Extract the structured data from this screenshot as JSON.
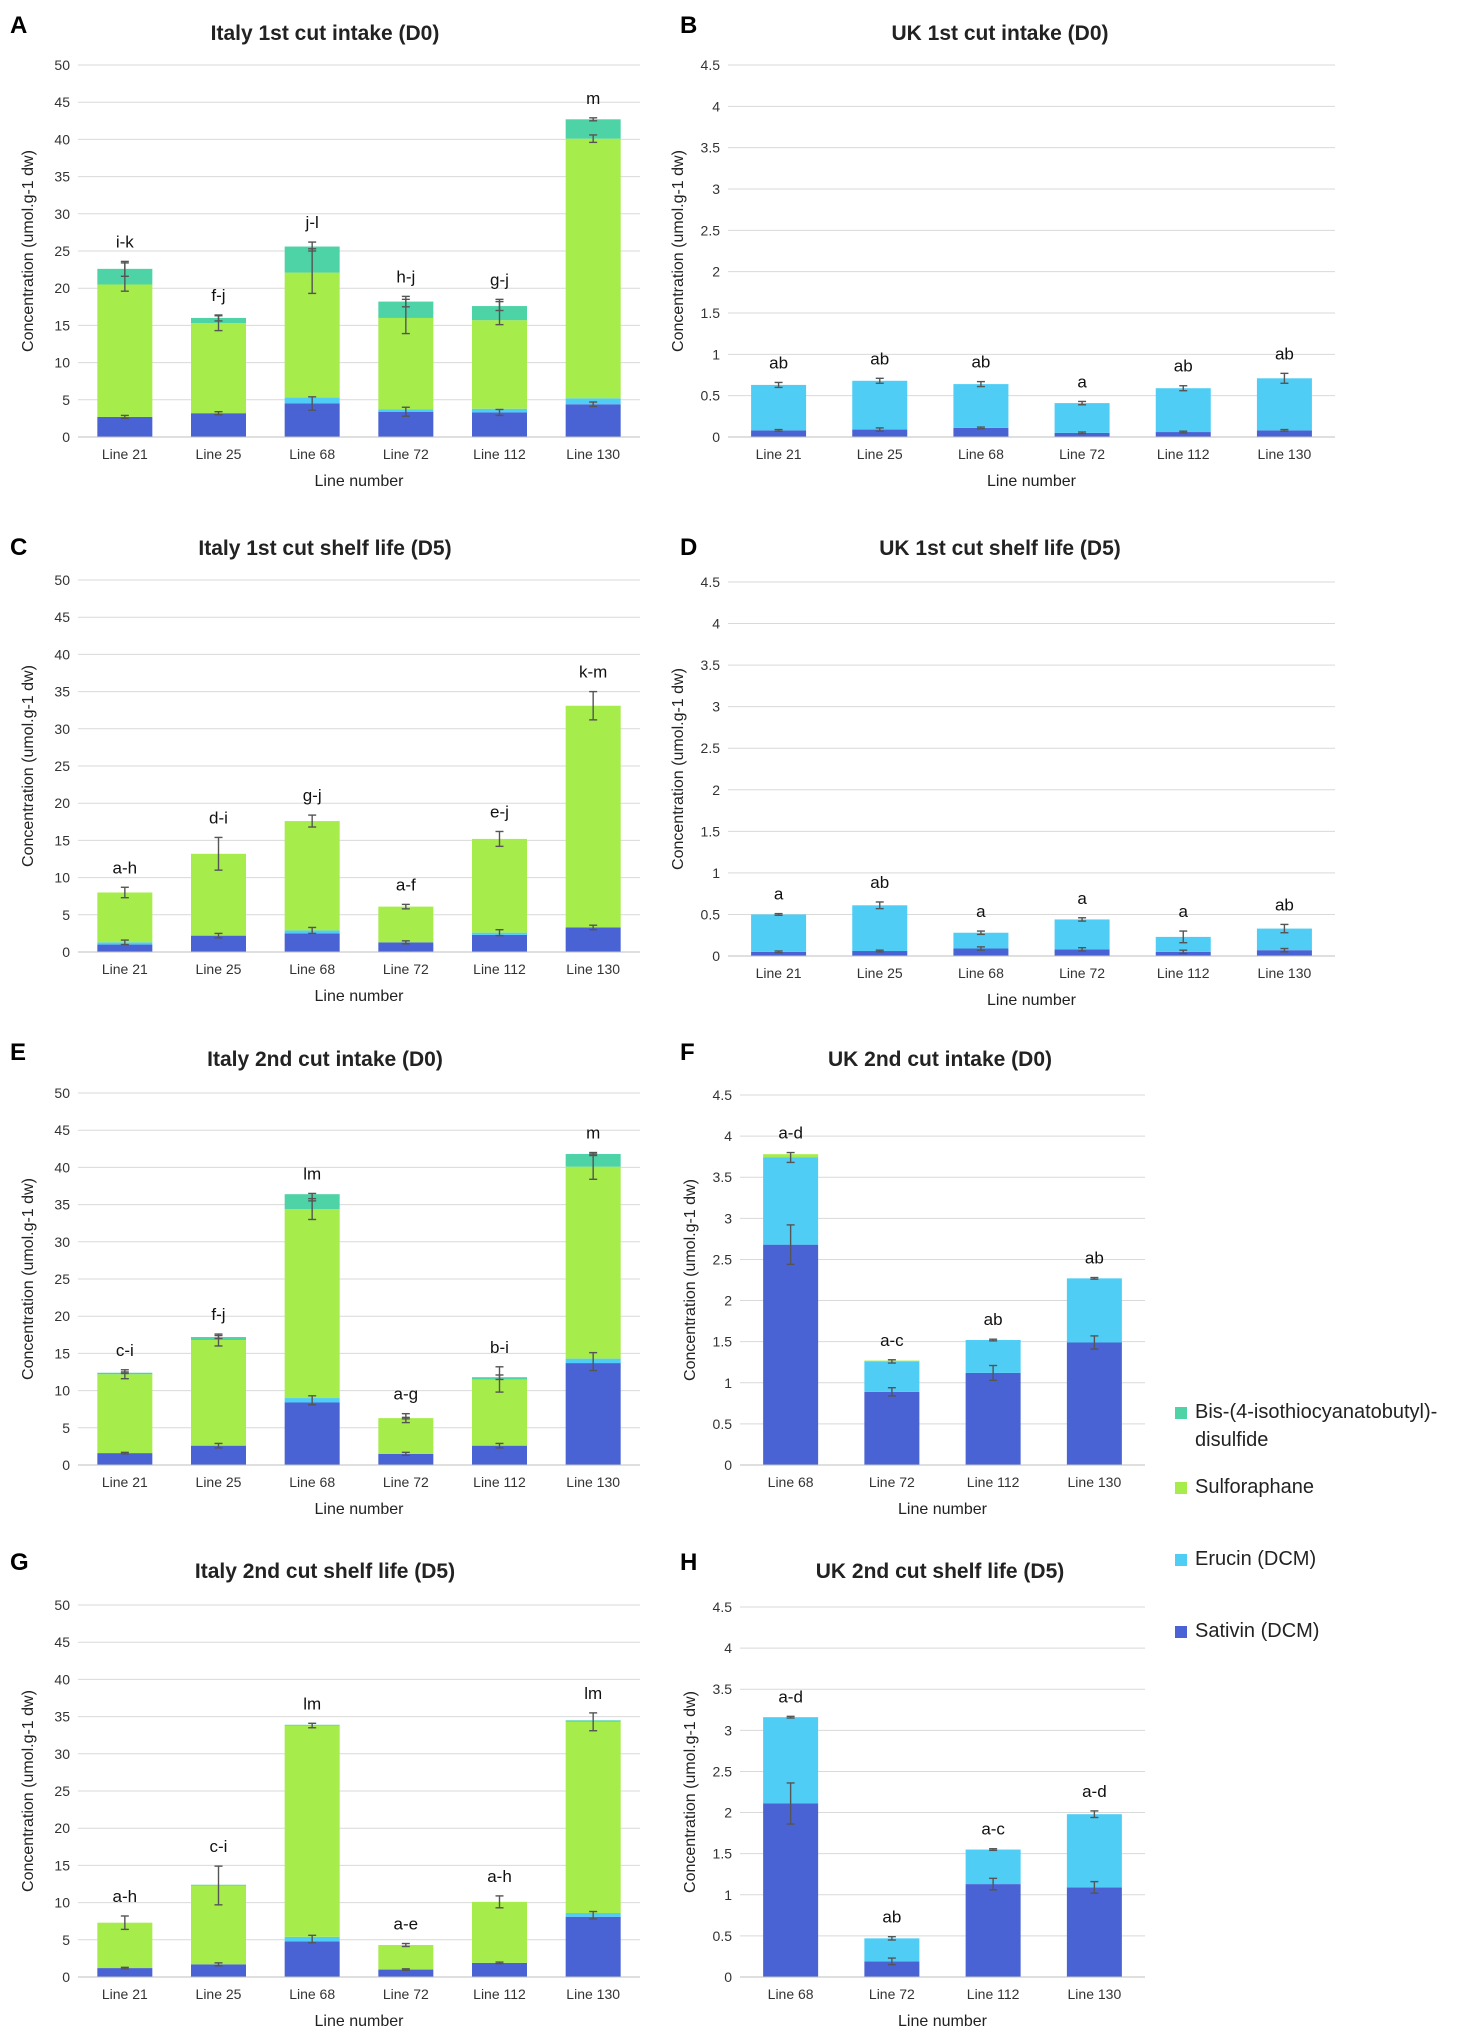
{
  "series_colors": {
    "Sativin (DCM)": "#4a63d4",
    "Erucin (DCM)": "#4fcdf5",
    "Sulforaphane": "#a6ec4a",
    "Bis-(4-isothiocyanatobutyl)-disulfide": "#4ed3a7"
  },
  "legend": {
    "items": [
      {
        "name": "Bis-(4-isothiocyanatobutyl)-disulfide",
        "lines": [
          "Bis-(4-isothiocyanatobutyl)-",
          "disulfide"
        ],
        "color": "#4ed3a7"
      },
      {
        "name": "Sulforaphane",
        "lines": [
          "Sulforaphane"
        ],
        "color": "#a6ec4a"
      },
      {
        "name": "Erucin (DCM)",
        "lines": [
          "Erucin (DCM)"
        ],
        "color": "#4fcdf5"
      },
      {
        "name": "Sativin (DCM)",
        "lines": [
          "Sativin (DCM)"
        ],
        "color": "#4a63d4"
      }
    ]
  },
  "chart_data": [
    {
      "panel": "A",
      "type": "bar",
      "stacked": true,
      "title": "Italy 1st cut intake (D0)",
      "xlabel": "Line number",
      "ylabel": "Concentration (umol.g-1 dw)",
      "ylim": [
        0,
        50
      ],
      "yticks": [
        "0",
        "5",
        "10",
        "15",
        "20",
        "25",
        "30",
        "35",
        "40",
        "45",
        "50"
      ],
      "categories": [
        "Line 21",
        "Line 25",
        "Line 68",
        "Line 72",
        "Line 112",
        "Line 130"
      ],
      "series": [
        {
          "name": "Sativin (DCM)",
          "values": [
            2.7,
            3.2,
            4.5,
            3.4,
            3.3,
            4.4
          ]
        },
        {
          "name": "Erucin (DCM)",
          "values": [
            0.0,
            0.0,
            0.8,
            0.3,
            0.5,
            0.8
          ]
        },
        {
          "name": "Sulforaphane",
          "values": [
            17.8,
            12.1,
            16.8,
            12.3,
            11.9,
            34.9
          ]
        },
        {
          "name": "Bis-(4-isothiocyanatobutyl)-disulfide",
          "values": [
            2.1,
            0.7,
            3.5,
            2.2,
            1.9,
            2.6
          ]
        }
      ],
      "error_bars": [
        {
          "at": [
            2.7,
            3.2,
            4.5,
            3.4,
            3.3,
            4.4
          ],
          "err": [
            0.2,
            0.2,
            0.9,
            0.6,
            0.4,
            0.3
          ]
        },
        {
          "at": [
            21.5,
            15.3,
            22.3,
            16.2,
            16.8,
            40.1
          ],
          "err": [
            1.9,
            1.0,
            3.0,
            2.3,
            1.7,
            0.5
          ]
        },
        {
          "at": [
            22.6,
            16.0,
            25.6,
            18.2,
            17.6,
            42.7
          ],
          "err": [
            1.0,
            0.4,
            0.6,
            0.7,
            0.6,
            0.2
          ]
        }
      ],
      "significance": [
        "i-k",
        "f-j",
        "j-l",
        "h-j",
        "g-j",
        "m"
      ]
    },
    {
      "panel": "B",
      "type": "bar",
      "stacked": true,
      "title": "UK 1st cut intake (D0)",
      "xlabel": "Line number",
      "ylabel": "Concentration (umol.g-1 dw)",
      "ylim": [
        0,
        4.5
      ],
      "yticks": [
        "0",
        "0.5",
        "1",
        "1.5",
        "2",
        "2.5",
        "3",
        "3.5",
        "4",
        "4.5"
      ],
      "categories": [
        "Line 21",
        "Line 25",
        "Line 68",
        "Line 72",
        "Line 112",
        "Line 130"
      ],
      "series": [
        {
          "name": "Sativin (DCM)",
          "values": [
            0.08,
            0.09,
            0.11,
            0.05,
            0.06,
            0.08
          ]
        },
        {
          "name": "Erucin (DCM)",
          "values": [
            0.55,
            0.59,
            0.53,
            0.36,
            0.53,
            0.63
          ]
        }
      ],
      "error_bars": [
        {
          "at": [
            0.08,
            0.09,
            0.11,
            0.05,
            0.06,
            0.08
          ],
          "err": [
            0.01,
            0.02,
            0.01,
            0.01,
            0.01,
            0.01
          ]
        },
        {
          "at": [
            0.63,
            0.68,
            0.64,
            0.41,
            0.59,
            0.71
          ],
          "err": [
            0.03,
            0.03,
            0.03,
            0.02,
            0.03,
            0.06
          ]
        }
      ],
      "significance": [
        "ab",
        "ab",
        "ab",
        "a",
        "ab",
        "ab"
      ]
    },
    {
      "panel": "C",
      "type": "bar",
      "stacked": true,
      "title": "Italy 1st cut shelf life (D5)",
      "xlabel": "Line number",
      "ylabel": "Concentration (umol.g-1 dw)",
      "ylim": [
        0,
        50
      ],
      "yticks": [
        "0",
        "5",
        "10",
        "15",
        "20",
        "25",
        "30",
        "35",
        "40",
        "45",
        "50"
      ],
      "categories": [
        "Line 21",
        "Line 25",
        "Line 68",
        "Line 72",
        "Line 112",
        "Line 130"
      ],
      "series": [
        {
          "name": "Sativin (DCM)",
          "values": [
            1.0,
            2.2,
            2.5,
            1.3,
            2.3,
            3.3
          ]
        },
        {
          "name": "Erucin (DCM)",
          "values": [
            0.3,
            0.0,
            0.4,
            0.0,
            0.3,
            0.0
          ]
        },
        {
          "name": "Sulforaphane",
          "values": [
            6.7,
            11.0,
            14.7,
            4.8,
            12.6,
            29.8
          ]
        }
      ],
      "error_bars": [
        {
          "at": [
            1.3,
            2.2,
            2.9,
            1.3,
            2.6,
            3.3
          ],
          "err": [
            0.3,
            0.3,
            0.4,
            0.2,
            0.4,
            0.3
          ]
        },
        {
          "at": [
            8.0,
            13.2,
            17.6,
            6.1,
            15.2,
            33.1
          ],
          "err": [
            0.7,
            2.2,
            0.8,
            0.3,
            1.0,
            1.9
          ]
        }
      ],
      "significance": [
        "a-h",
        "d-i",
        "g-j",
        "a-f",
        "e-j",
        "k-m"
      ]
    },
    {
      "panel": "D",
      "type": "bar",
      "stacked": true,
      "title": "UK 1st cut shelf life (D5)",
      "xlabel": "Line number",
      "ylabel": "Concentration (umol.g-1 dw)",
      "ylim": [
        0,
        4.5
      ],
      "yticks": [
        "0",
        "0.5",
        "1",
        "1.5",
        "2",
        "2.5",
        "3",
        "3.5",
        "4",
        "4.5"
      ],
      "categories": [
        "Line 21",
        "Line 25",
        "Line 68",
        "Line 72",
        "Line 112",
        "Line 130"
      ],
      "series": [
        {
          "name": "Sativin (DCM)",
          "values": [
            0.05,
            0.06,
            0.09,
            0.08,
            0.05,
            0.07
          ]
        },
        {
          "name": "Erucin (DCM)",
          "values": [
            0.45,
            0.55,
            0.19,
            0.36,
            0.18,
            0.26
          ]
        }
      ],
      "error_bars": [
        {
          "at": [
            0.05,
            0.06,
            0.09,
            0.08,
            0.05,
            0.07
          ],
          "err": [
            0.01,
            0.01,
            0.02,
            0.02,
            0.02,
            0.02
          ]
        },
        {
          "at": [
            0.5,
            0.61,
            0.28,
            0.44,
            0.23,
            0.33
          ],
          "err": [
            0.01,
            0.04,
            0.02,
            0.02,
            0.07,
            0.05
          ]
        }
      ],
      "significance": [
        "a",
        "ab",
        "a",
        "a",
        "a",
        "ab"
      ]
    },
    {
      "panel": "E",
      "type": "bar",
      "stacked": true,
      "title": "Italy 2nd cut intake (D0)",
      "xlabel": "Line number",
      "ylabel": "Concentration (umol.g-1 dw)",
      "ylim": [
        0,
        50
      ],
      "yticks": [
        "0",
        "5",
        "10",
        "15",
        "20",
        "25",
        "30",
        "35",
        "40",
        "45",
        "50"
      ],
      "categories": [
        "Line 21",
        "Line 25",
        "Line 68",
        "Line 72",
        "Line 112",
        "Line 130"
      ],
      "series": [
        {
          "name": "Sativin (DCM)",
          "values": [
            1.6,
            2.6,
            8.4,
            1.5,
            2.6,
            13.7
          ]
        },
        {
          "name": "Erucin (DCM)",
          "values": [
            0.0,
            0.0,
            0.6,
            0.0,
            0.0,
            0.6
          ]
        },
        {
          "name": "Sulforaphane",
          "values": [
            10.6,
            14.2,
            25.4,
            4.8,
            8.9,
            25.8
          ]
        },
        {
          "name": "Bis-(4-isothiocyanatobutyl)-disulfide",
          "values": [
            0.2,
            0.4,
            2.0,
            0.0,
            0.3,
            1.7
          ]
        }
      ],
      "error_bars": [
        {
          "at": [
            1.6,
            2.6,
            8.7,
            1.5,
            2.6,
            13.9
          ],
          "err": [
            0.1,
            0.3,
            0.6,
            0.2,
            0.3,
            1.2
          ]
        },
        {
          "at": [
            12.2,
            16.8,
            34.4,
            6.3,
            11.5,
            40.1
          ],
          "err": [
            0.6,
            0.8,
            1.4,
            0.6,
            1.7,
            1.7
          ]
        },
        {
          "at": [
            12.4,
            17.2,
            36.0,
            6.3,
            11.8,
            41.8
          ],
          "err": [
            0.1,
            0.2,
            0.5,
            0.1,
            0.3,
            0.2
          ]
        }
      ],
      "significance": [
        "c-i",
        "f-j",
        "lm",
        "a-g",
        "b-i",
        "m"
      ]
    },
    {
      "panel": "F",
      "type": "bar",
      "stacked": true,
      "title": "UK 2nd cut intake (D0)",
      "xlabel": "Line number",
      "ylabel": "Concentration (umol.g-1 dw)",
      "ylim": [
        0,
        4.5
      ],
      "yticks": [
        "0",
        "0.5",
        "1",
        "1.5",
        "2",
        "2.5",
        "3",
        "3.5",
        "4",
        "4.5"
      ],
      "categories": [
        "Line 68",
        "Line 72",
        "Line 112",
        "Line 130"
      ],
      "series": [
        {
          "name": "Sativin (DCM)",
          "values": [
            2.68,
            0.89,
            1.12,
            1.49
          ]
        },
        {
          "name": "Erucin (DCM)",
          "values": [
            1.06,
            0.37,
            0.4,
            0.78
          ]
        },
        {
          "name": "Sulforaphane",
          "values": [
            0.04,
            0.01,
            0.0,
            0.0
          ]
        }
      ],
      "error_bars": [
        {
          "at": [
            2.68,
            0.89,
            1.12,
            1.49
          ],
          "err": [
            0.24,
            0.05,
            0.09,
            0.08
          ]
        },
        {
          "at": [
            3.74,
            1.26,
            1.52,
            2.27
          ],
          "err": [
            0.06,
            0.02,
            0.01,
            0.01
          ]
        }
      ],
      "significance": [
        "a-d",
        "a-c",
        "ab",
        "ab"
      ]
    },
    {
      "panel": "G",
      "type": "bar",
      "stacked": true,
      "title": "Italy 2nd cut shelf life (D5)",
      "xlabel": "Line number",
      "ylabel": "Concentration (umol.g-1 dw)",
      "ylim": [
        0,
        50
      ],
      "yticks": [
        "0",
        "5",
        "10",
        "15",
        "20",
        "25",
        "30",
        "35",
        "40",
        "45",
        "50"
      ],
      "categories": [
        "Line 21",
        "Line 25",
        "Line 68",
        "Line 72",
        "Line 112",
        "Line 130"
      ],
      "series": [
        {
          "name": "Sativin (DCM)",
          "values": [
            1.2,
            1.7,
            4.8,
            1.0,
            1.9,
            8.1
          ]
        },
        {
          "name": "Erucin (DCM)",
          "values": [
            0.0,
            0.0,
            0.6,
            0.0,
            0.0,
            0.5
          ]
        },
        {
          "name": "Sulforaphane",
          "values": [
            6.1,
            10.6,
            28.4,
            3.3,
            8.2,
            25.7
          ]
        },
        {
          "name": "Bis-(4-isothiocyanatobutyl)-disulfide",
          "values": [
            0.0,
            0.1,
            0.1,
            0.0,
            0.0,
            0.2
          ]
        }
      ],
      "error_bars": [
        {
          "at": [
            1.2,
            1.7,
            5.1,
            1.0,
            1.9,
            8.3
          ],
          "err": [
            0.1,
            0.2,
            0.5,
            0.1,
            0.1,
            0.5
          ]
        },
        {
          "at": [
            7.3,
            12.3,
            33.8,
            4.3,
            10.1,
            34.3
          ],
          "err": [
            0.9,
            2.6,
            0.3,
            0.2,
            0.8,
            1.2
          ]
        }
      ],
      "significance": [
        "a-h",
        "c-i",
        "lm",
        "a-e",
        "a-h",
        "lm"
      ]
    },
    {
      "panel": "H",
      "type": "bar",
      "stacked": true,
      "title": "UK 2nd cut shelf life (D5)",
      "xlabel": "Line number",
      "ylabel": "Concentration (umol.g-1 dw)",
      "ylim": [
        0,
        4.5
      ],
      "yticks": [
        "0",
        "0.5",
        "1",
        "1.5",
        "2",
        "2.5",
        "3",
        "3.5",
        "4",
        "4.5"
      ],
      "categories": [
        "Line 68",
        "Line 72",
        "Line 112",
        "Line 130"
      ],
      "series": [
        {
          "name": "Sativin (DCM)",
          "values": [
            2.11,
            0.19,
            1.13,
            1.09
          ]
        },
        {
          "name": "Erucin (DCM)",
          "values": [
            1.05,
            0.28,
            0.42,
            0.89
          ]
        }
      ],
      "error_bars": [
        {
          "at": [
            2.11,
            0.19,
            1.13,
            1.09
          ],
          "err": [
            0.25,
            0.04,
            0.07,
            0.07
          ]
        },
        {
          "at": [
            3.16,
            0.47,
            1.55,
            1.98
          ],
          "err": [
            0.01,
            0.02,
            0.01,
            0.04
          ]
        }
      ],
      "significance": [
        "a-d",
        "ab",
        "a-c",
        "a-d"
      ]
    }
  ]
}
